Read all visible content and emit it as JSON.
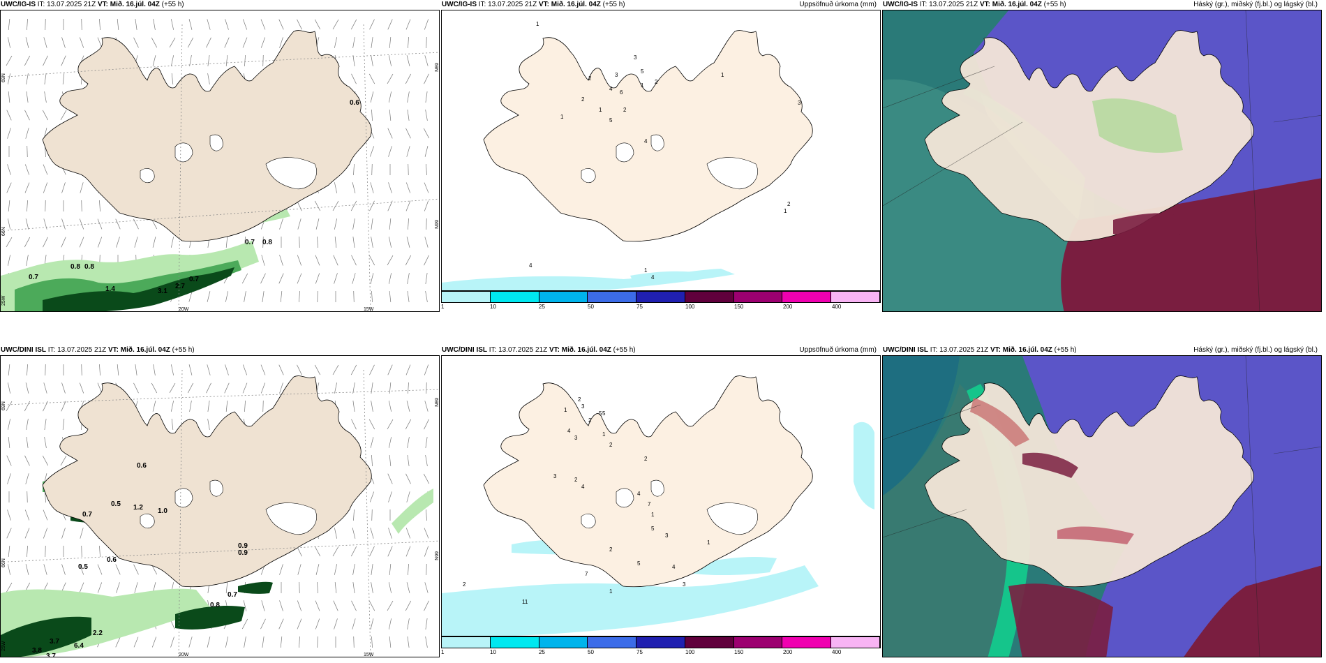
{
  "rows": [
    {
      "model": "UWC/IG-IS",
      "it_label": "IT:",
      "it_value": "13.07.2025 21Z",
      "vt_label": "VT:",
      "vt_value": "Mið. 16.júl. 04Z",
      "lead": "(+55 h)",
      "precip_title": "Uppsöfnuð úrkoma (mm)",
      "cloud_title": "Háský (gr.), miðský (fj.bl.) og lágský (bl.)",
      "wind_labels": [
        "0.6",
        "0.7",
        "0.8",
        "0.8",
        "0.8",
        "0.7",
        "1.4",
        "2.7",
        "3.1",
        "0.7"
      ],
      "precip_labels": [
        "1",
        "3",
        "5",
        "4",
        "2",
        "2",
        "6",
        "1",
        "5",
        "2",
        "3",
        "1",
        "1",
        "4",
        "2",
        "1",
        "3",
        "1",
        "2",
        "4",
        "1",
        "4"
      ],
      "axis_labels": [
        "69N",
        "66N",
        "25W",
        "20W",
        "15W",
        "66N",
        "69N"
      ]
    },
    {
      "model": "UWC/DINI ISL",
      "it_label": "IT:",
      "it_value": "13.07.2025 21Z",
      "vt_label": "VT:",
      "vt_value": "Mið. 16.júl. 04Z",
      "lead": "(+55 h)",
      "precip_title": "Uppsöfnuð úrkoma (mm)",
      "cloud_title": "Háský (gr.), miðský (fj.bl.) og lágský (bl.)",
      "wind_labels": [
        "0.6",
        "0.5",
        "0.7",
        "1.2",
        "1.0",
        "0.9",
        "0.6",
        "0.5",
        "0.9",
        "0.7",
        "0.8",
        "2.2",
        "3.7",
        "3.8",
        "3.7",
        "6.4"
      ],
      "precip_labels": [
        "2",
        "1",
        "3",
        "5",
        "2",
        "4",
        "3",
        "1",
        "2",
        "2",
        "5",
        "3",
        "2",
        "4",
        "4",
        "1",
        "7",
        "5",
        "3",
        "1",
        "2",
        "5",
        "4",
        "3",
        "7",
        "11",
        "2",
        "1"
      ],
      "axis_labels": [
        "69N",
        "66N",
        "25W",
        "20W",
        "15W",
        "66N",
        "69N"
      ]
    }
  ],
  "colorbar": {
    "ticks": [
      "1",
      "10",
      "25",
      "50",
      "75",
      "100",
      "150",
      "200",
      "400"
    ],
    "colors": [
      "#b8f4f8",
      "#00e8f0",
      "#00b4ec",
      "#3c6ce8",
      "#2020b0",
      "#60003c",
      "#9c0070",
      "#f000b0",
      "#f8b4f4"
    ]
  },
  "colors": {
    "land": "#efe2d2",
    "land_precip_panel": "#fcf0e2",
    "precip_green_light": "#b8e8b0",
    "precip_green_mid": "#4caa5a",
    "precip_green_dark": "#0a4a1a",
    "ocean_teal": "#2a7a78",
    "cloud_blue": "#5b55c8",
    "cloud_maroon": "#7a1e40",
    "cloud_green": "#6ac8a0"
  }
}
